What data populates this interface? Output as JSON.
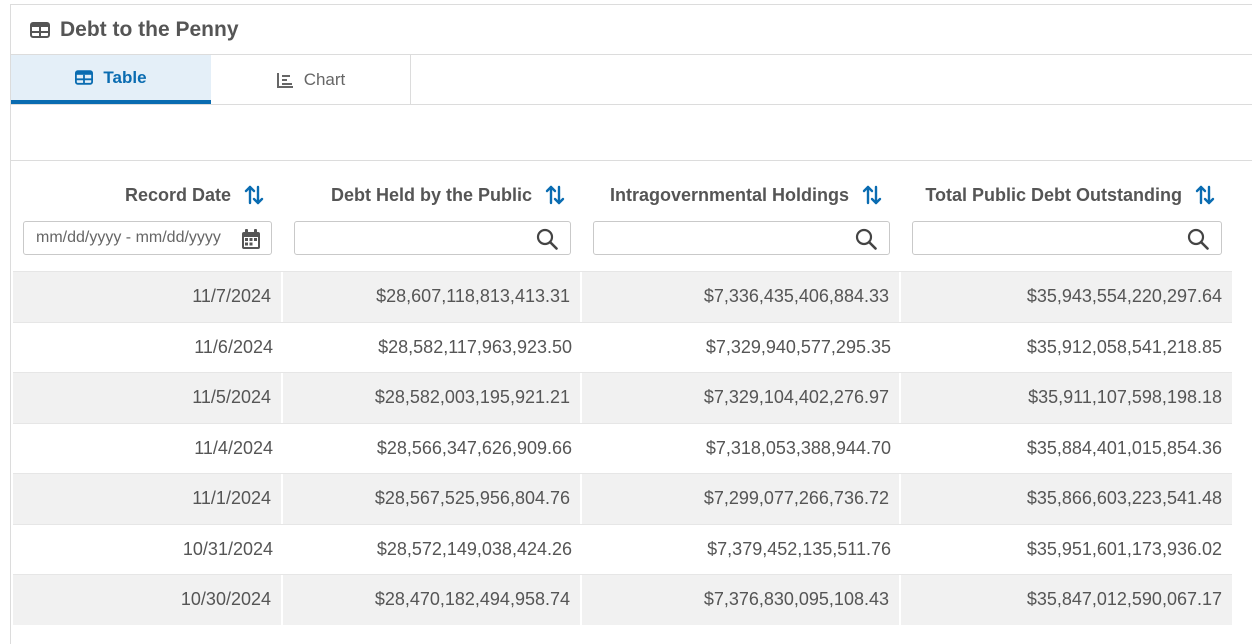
{
  "page": {
    "title": "Debt to the Penny",
    "title_icon": "table-icon"
  },
  "tabs": [
    {
      "label": "Table",
      "icon": "table-icon",
      "active": true
    },
    {
      "label": "Chart",
      "icon": "chart-icon",
      "active": false
    }
  ],
  "columns": [
    {
      "label": "Record Date",
      "filter_type": "date",
      "placeholder": "mm/dd/yyyy - mm/dd/yyyy"
    },
    {
      "label": "Debt Held by the Public",
      "filter_type": "search",
      "placeholder": ""
    },
    {
      "label": "Intragovernmental Holdings",
      "filter_type": "search",
      "placeholder": ""
    },
    {
      "label": "Total Public Debt Outstanding",
      "filter_type": "search",
      "placeholder": ""
    }
  ],
  "rows": [
    [
      "11/7/2024",
      "$28,607,118,813,413.31",
      "$7,336,435,406,884.33",
      "$35,943,554,220,297.64"
    ],
    [
      "11/6/2024",
      "$28,582,117,963,923.50",
      "$7,329,940,577,295.35",
      "$35,912,058,541,218.85"
    ],
    [
      "11/5/2024",
      "$28,582,003,195,921.21",
      "$7,329,104,402,276.97",
      "$35,911,107,598,198.18"
    ],
    [
      "11/4/2024",
      "$28,566,347,626,909.66",
      "$7,318,053,388,944.70",
      "$35,884,401,015,854.36"
    ],
    [
      "11/1/2024",
      "$28,567,525,956,804.76",
      "$7,299,077,266,736.72",
      "$35,866,603,223,541.48"
    ],
    [
      "10/31/2024",
      "$28,572,149,038,424.26",
      "$7,379,452,135,511.76",
      "$35,951,601,173,936.02"
    ],
    [
      "10/30/2024",
      "$28,470,182,494,958.74",
      "$7,376,830,095,108.43",
      "$35,847,012,590,067.17"
    ]
  ],
  "colors": {
    "accent": "#0a6cb1",
    "active_tab_bg": "#e4eff8",
    "text": "#555555",
    "stripe": "#f1f1f1"
  }
}
